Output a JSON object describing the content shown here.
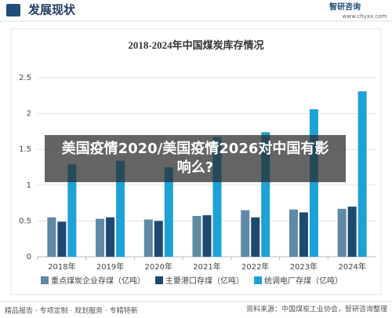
{
  "header": {
    "title": "发展现状",
    "logo_name": "智研咨询",
    "logo_url": "www.chyxx.com"
  },
  "chart_data": {
    "type": "bar",
    "title": "2018-2024年中国煤炭库存情况",
    "categories": [
      "2018年",
      "2019年",
      "2020年",
      "2021年",
      "2022年",
      "2023年",
      "2024年"
    ],
    "series": [
      {
        "name": "重点煤炭企业存煤（亿吨）",
        "color": "#5e8aa6",
        "values": [
          0.55,
          0.53,
          0.52,
          0.57,
          0.65,
          0.66,
          0.67
        ]
      },
      {
        "name": "主要港口存煤（亿吨）",
        "color": "#1d4a6e",
        "values": [
          0.49,
          0.55,
          0.5,
          0.58,
          0.55,
          0.62,
          0.7
        ]
      },
      {
        "name": "统调电厂存煤（亿吨）",
        "color": "#1ea1d7",
        "values": [
          1.29,
          1.34,
          1.25,
          1.67,
          1.74,
          2.06,
          2.31
        ]
      }
    ],
    "ylim": [
      0,
      2.5
    ],
    "yticks": [
      0,
      0.5,
      1,
      1.5,
      2,
      2.5
    ],
    "grid": true
  },
  "overlay": {
    "text": "美国疫情2020/美国疫情2026对中国有影响么?"
  },
  "footer": {
    "left": "精品报告 · 专项定制 · 规划服务 · 专精特新",
    "right": "资料来源：中国煤炭工业协会，智研咨询整理"
  }
}
